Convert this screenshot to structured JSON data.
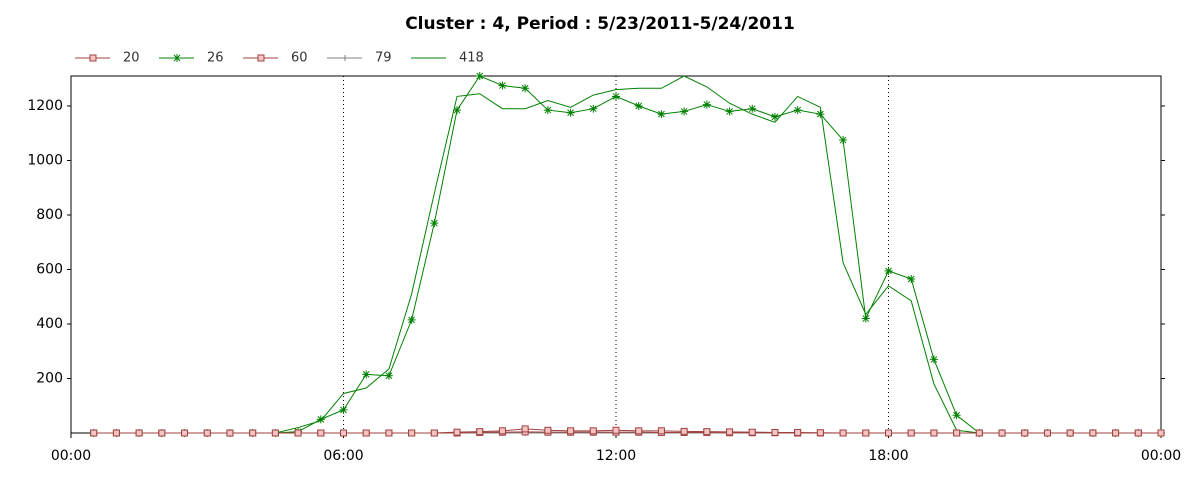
{
  "chart_data": {
    "type": "line",
    "title": "Cluster : 4, Period : 5/23/2011-5/24/2011",
    "x": [
      0.5,
      1,
      1.5,
      2,
      2.5,
      3,
      3.5,
      4,
      4.5,
      5,
      5.5,
      6,
      6.5,
      7,
      7.5,
      8,
      8.5,
      9,
      9.5,
      10,
      10.5,
      11,
      11.5,
      12,
      12.5,
      13,
      13.5,
      14,
      14.5,
      15,
      15.5,
      16,
      16.5,
      17,
      17.5,
      18,
      18.5,
      19,
      19.5,
      20,
      20.5,
      21,
      21.5,
      22,
      22.5,
      23,
      23.5,
      24
    ],
    "series": [
      {
        "name": "20",
        "color": "#a0403f",
        "marker": "square",
        "values": [
          0,
          0,
          0,
          0,
          0,
          0,
          0,
          0,
          0,
          0,
          0,
          0,
          0,
          0,
          0,
          0,
          3,
          5,
          8,
          15,
          10,
          8,
          8,
          10,
          8,
          8,
          6,
          5,
          4,
          3,
          2,
          2,
          1,
          0,
          0,
          0,
          0,
          0,
          0,
          0,
          0,
          0,
          0,
          0,
          0,
          0,
          0,
          0
        ]
      },
      {
        "name": "26",
        "color": "#008000",
        "marker": "star",
        "values": [
          0,
          0,
          0,
          0,
          0,
          0,
          0,
          0,
          0,
          5,
          50,
          85,
          215,
          210,
          415,
          770,
          1185,
          1310,
          1275,
          1265,
          1185,
          1175,
          1190,
          1235,
          1200,
          1170,
          1180,
          1205,
          1180,
          1190,
          1160,
          1185,
          1170,
          1075,
          420,
          595,
          565,
          270,
          65,
          0,
          0,
          0,
          0,
          0,
          0,
          0,
          0,
          0
        ]
      },
      {
        "name": "60",
        "color": "#a0403f",
        "marker": "square",
        "values": [
          0,
          0,
          0,
          0,
          0,
          0,
          0,
          0,
          0,
          0,
          0,
          0,
          0,
          0,
          0,
          0,
          0,
          2,
          3,
          4,
          3,
          3,
          3,
          3,
          3,
          2,
          2,
          2,
          1,
          1,
          1,
          0,
          0,
          0,
          0,
          0,
          0,
          0,
          0,
          0,
          0,
          0,
          0,
          0,
          0,
          0,
          0,
          0
        ]
      },
      {
        "name": "79",
        "color": "#808080",
        "marker": "plus",
        "values": [
          0,
          0,
          0,
          0,
          0,
          0,
          0,
          0,
          0,
          0,
          0,
          0,
          0,
          0,
          0,
          0,
          0,
          0,
          0,
          0,
          0,
          0,
          0,
          0,
          0,
          0,
          0,
          0,
          0,
          0,
          0,
          0,
          0,
          0,
          0,
          0,
          0,
          0,
          0,
          0,
          0,
          0,
          0,
          0,
          0,
          0,
          0,
          0
        ]
      },
      {
        "name": "418",
        "color": "#008000",
        "values": [
          null,
          null,
          null,
          null,
          null,
          null,
          null,
          null,
          0,
          20,
          45,
          145,
          165,
          235,
          510,
          880,
          1235,
          1245,
          1190,
          1190,
          1220,
          1195,
          1240,
          1260,
          1265,
          1265,
          1310,
          1270,
          1210,
          1170,
          1140,
          1235,
          1195,
          625,
          435,
          540,
          485,
          180,
          10,
          0,
          null,
          null,
          null,
          null,
          null,
          null,
          null,
          null
        ]
      }
    ],
    "xlim": [
      0,
      24
    ],
    "xticks": [
      {
        "value": 0,
        "label": "00:00"
      },
      {
        "value": 6,
        "label": "06:00"
      },
      {
        "value": 12,
        "label": "12:00"
      },
      {
        "value": 18,
        "label": "18:00"
      },
      {
        "value": 24,
        "label": "00:00"
      }
    ],
    "ylim": [
      0,
      1310
    ],
    "yticks": [
      200,
      400,
      600,
      800,
      1000,
      1200
    ],
    "grid": true
  }
}
